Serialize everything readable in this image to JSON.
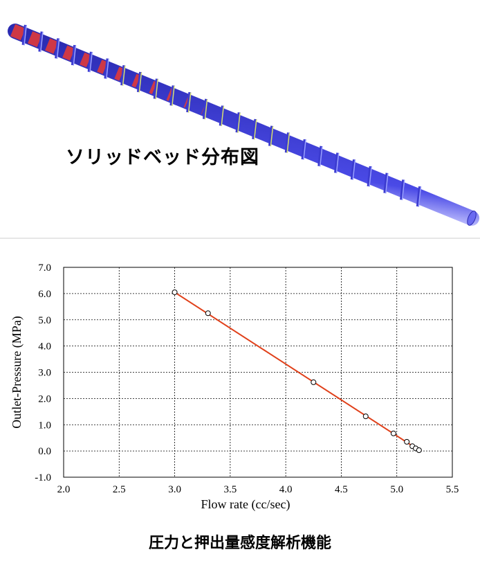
{
  "top_caption": "ソリッドベッド分布図",
  "bottom_caption": "圧力と押出量感度解析機能",
  "colors": {
    "screw_body": "#4a4ae6",
    "screw_highlight": "#c8c8ff",
    "solid_bed": "#e03a3a",
    "flight_edge": "#d8e070",
    "fit_line": "#e0401a",
    "marker": "#000000"
  },
  "chart_data": {
    "type": "scatter",
    "xlabel": "Flow rate (cc/sec)",
    "ylabel": "Outlet-Pressure (MPa)",
    "xlim": [
      2.0,
      5.5
    ],
    "ylim": [
      -1.0,
      7.0
    ],
    "x_ticks": [
      "2.0",
      "2.5",
      "3.0",
      "3.5",
      "4.0",
      "4.5",
      "5.0",
      "5.5"
    ],
    "y_ticks": [
      "-1.0",
      "0.0",
      "1.0",
      "2.0",
      "3.0",
      "4.0",
      "5.0",
      "6.0",
      "7.0"
    ],
    "grid": true,
    "series": [
      {
        "points": [
          [
            3.0,
            6.05
          ],
          [
            3.3,
            5.25
          ],
          [
            4.25,
            2.62
          ],
          [
            4.72,
            1.32
          ],
          [
            4.97,
            0.67
          ],
          [
            5.09,
            0.35
          ],
          [
            5.14,
            0.18
          ],
          [
            5.17,
            0.1
          ],
          [
            5.2,
            0.03
          ]
        ],
        "fit_line": [
          [
            3.0,
            6.05
          ],
          [
            5.2,
            0.03
          ]
        ]
      }
    ]
  }
}
